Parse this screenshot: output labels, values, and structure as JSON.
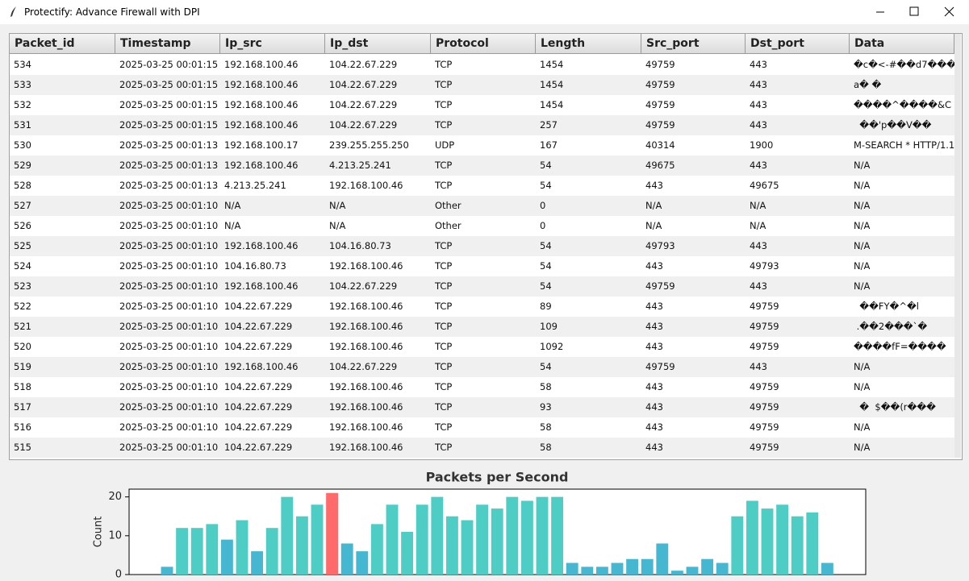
{
  "window": {
    "title": "Protectify: Advance Firewall with DPI"
  },
  "table": {
    "columns": [
      "Packet_id",
      "Timestamp",
      "Ip_src",
      "Ip_dst",
      "Protocol",
      "Length",
      "Src_port",
      "Dst_port",
      "Data"
    ],
    "rows": [
      [
        "534",
        "2025-03-25 00:01:15",
        "192.168.100.46",
        "104.22.67.229",
        "TCP",
        "1454",
        "49759",
        "443",
        "�c�<-#��d7���"
      ],
      [
        "533",
        "2025-03-25 00:01:15",
        "192.168.100.46",
        "104.22.67.229",
        "TCP",
        "1454",
        "49759",
        "443",
        "a� �"
      ],
      [
        "532",
        "2025-03-25 00:01:15",
        "192.168.100.46",
        "104.22.67.229",
        "TCP",
        "1454",
        "49759",
        "443",
        "����^����&C"
      ],
      [
        "531",
        "2025-03-25 00:01:15",
        "192.168.100.46",
        "104.22.67.229",
        "TCP",
        "257",
        "49759",
        "443",
        "  ��'p��V��"
      ],
      [
        "530",
        "2025-03-25 00:01:13",
        "192.168.100.17",
        "239.255.255.250",
        "UDP",
        "167",
        "40314",
        "1900",
        "M-SEARCH * HTTP/1.1"
      ],
      [
        "529",
        "2025-03-25 00:01:13",
        "192.168.100.46",
        "4.213.25.241",
        "TCP",
        "54",
        "49675",
        "443",
        "N/A"
      ],
      [
        "528",
        "2025-03-25 00:01:13",
        "4.213.25.241",
        "192.168.100.46",
        "TCP",
        "54",
        "443",
        "49675",
        "N/A"
      ],
      [
        "527",
        "2025-03-25 00:01:10",
        "N/A",
        "N/A",
        "Other",
        "0",
        "N/A",
        "N/A",
        "N/A"
      ],
      [
        "526",
        "2025-03-25 00:01:10",
        "N/A",
        "N/A",
        "Other",
        "0",
        "N/A",
        "N/A",
        "N/A"
      ],
      [
        "525",
        "2025-03-25 00:01:10",
        "192.168.100.46",
        "104.16.80.73",
        "TCP",
        "54",
        "49793",
        "443",
        "N/A"
      ],
      [
        "524",
        "2025-03-25 00:01:10",
        "104.16.80.73",
        "192.168.100.46",
        "TCP",
        "54",
        "443",
        "49793",
        "N/A"
      ],
      [
        "523",
        "2025-03-25 00:01:10",
        "192.168.100.46",
        "104.22.67.229",
        "TCP",
        "54",
        "49759",
        "443",
        "N/A"
      ],
      [
        "522",
        "2025-03-25 00:01:10",
        "104.22.67.229",
        "192.168.100.46",
        "TCP",
        "89",
        "443",
        "49759",
        "  ��FY�^�l"
      ],
      [
        "521",
        "2025-03-25 00:01:10",
        "104.22.67.229",
        "192.168.100.46",
        "TCP",
        "109",
        "443",
        "49759",
        " .��2���`�"
      ],
      [
        "520",
        "2025-03-25 00:01:10",
        "104.22.67.229",
        "192.168.100.46",
        "TCP",
        "1092",
        "443",
        "49759",
        "����fF=����"
      ],
      [
        "519",
        "2025-03-25 00:01:10",
        "192.168.100.46",
        "104.22.67.229",
        "TCP",
        "54",
        "49759",
        "443",
        "N/A"
      ],
      [
        "518",
        "2025-03-25 00:01:10",
        "104.22.67.229",
        "192.168.100.46",
        "TCP",
        "58",
        "443",
        "49759",
        "N/A"
      ],
      [
        "517",
        "2025-03-25 00:01:10",
        "104.22.67.229",
        "192.168.100.46",
        "TCP",
        "93",
        "443",
        "49759",
        "  �  $��(r���"
      ],
      [
        "516",
        "2025-03-25 00:01:10",
        "104.22.67.229",
        "192.168.100.46",
        "TCP",
        "58",
        "443",
        "49759",
        "N/A"
      ],
      [
        "515",
        "2025-03-25 00:01:10",
        "104.22.67.229",
        "192.168.100.46",
        "TCP",
        "58",
        "443",
        "49759",
        "N/A"
      ]
    ]
  },
  "chart_data": {
    "type": "bar",
    "title": "Packets per Second",
    "y_label": "Count",
    "values": [
      2,
      12,
      12,
      13,
      9,
      14,
      6,
      12,
      20,
      15,
      18,
      21,
      8,
      6,
      13,
      18,
      11,
      18,
      20,
      15,
      14,
      18,
      17,
      20,
      19,
      20,
      20,
      3,
      2,
      2,
      3,
      4,
      4,
      8,
      1,
      2,
      4,
      3,
      15,
      19,
      17,
      18,
      15,
      16,
      3
    ],
    "colors": [
      "#45b7d1",
      "#4ecdc4",
      "#4ecdc4",
      "#4ecdc4",
      "#45b7d1",
      "#4ecdc4",
      "#45b7d1",
      "#4ecdc4",
      "#4ecdc4",
      "#4ecdc4",
      "#4ecdc4",
      "#ff6b6b",
      "#45b7d1",
      "#45b7d1",
      "#4ecdc4",
      "#4ecdc4",
      "#4ecdc4",
      "#4ecdc4",
      "#4ecdc4",
      "#4ecdc4",
      "#4ecdc4",
      "#4ecdc4",
      "#4ecdc4",
      "#4ecdc4",
      "#4ecdc4",
      "#4ecdc4",
      "#4ecdc4",
      "#45b7d1",
      "#45b7d1",
      "#45b7d1",
      "#45b7d1",
      "#45b7d1",
      "#45b7d1",
      "#45b7d1",
      "#45b7d1",
      "#45b7d1",
      "#45b7d1",
      "#45b7d1",
      "#4ecdc4",
      "#4ecdc4",
      "#4ecdc4",
      "#4ecdc4",
      "#4ecdc4",
      "#4ecdc4",
      "#45b7d1"
    ],
    "ylim": [
      0,
      22
    ],
    "yticks": [
      0,
      10,
      20
    ]
  }
}
